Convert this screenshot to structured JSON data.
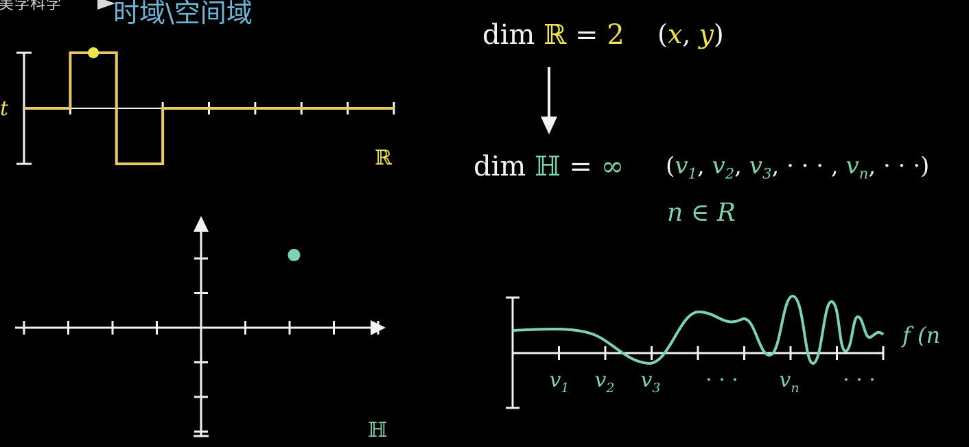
{
  "watermark": {
    "text": "美学科学"
  },
  "heading": {
    "text": "时域\\空间域"
  },
  "colors": {
    "background": "#000000",
    "axis": "#f2f2f2",
    "signal_yellow": "#e8c963",
    "point_yellow": "#efe44d",
    "teal": "#7cd3b0",
    "heading_blue": "#6cb6d8"
  },
  "time_domain": {
    "axis_label": "t",
    "space_label": "ℝ",
    "square_wave": {
      "x_ticks": 8,
      "pulse_high": [
        1,
        2
      ],
      "pulse_low": [
        2,
        3
      ],
      "high_value": 1,
      "low_value": -1,
      "point_x": 1.5,
      "point_y": 1
    }
  },
  "hilbert_plane": {
    "space_label": "ℍ",
    "x_ticks": [
      -4,
      -3,
      -2,
      -1,
      1,
      2,
      3,
      4
    ],
    "y_ticks": [
      -3,
      -2,
      -1,
      1,
      2
    ],
    "point": {
      "x": 2.1,
      "y": 2.1
    }
  },
  "equations": {
    "dim_r": {
      "prefix": "dim ",
      "space": "ℝ",
      "equals": " = ",
      "value": "2"
    },
    "coords_r": {
      "open": "(",
      "x": "x",
      "comma": ", ",
      "y": "y",
      "close": ")"
    },
    "dim_h": {
      "prefix": "dim ",
      "space": "ℍ",
      "equals": " = ",
      "value": "∞"
    },
    "coords_h": {
      "open": "(",
      "v": "v",
      "sub1": "1",
      "sub2": "2",
      "sub3": "3",
      "subn": "n",
      "dots": "· · ·",
      "close": ")"
    },
    "domain_note": {
      "n": "n",
      "in": " ∈ ",
      "R": "R"
    }
  },
  "function_plot": {
    "label": "f (n",
    "tick_labels": [
      {
        "base": "v",
        "sub": "1"
      },
      {
        "base": "v",
        "sub": "2"
      },
      {
        "base": "v",
        "sub": "3"
      },
      {
        "base": "· · ·",
        "sub": ""
      },
      {
        "base": "v",
        "sub": "n"
      },
      {
        "base": "· · ·",
        "sub": ""
      }
    ],
    "tick_count": 8
  }
}
